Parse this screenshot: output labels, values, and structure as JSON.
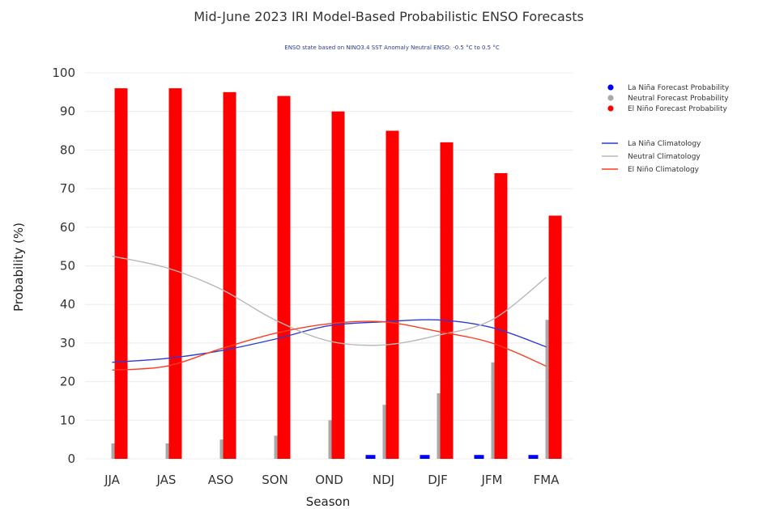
{
  "chart_data": {
    "type": "bar",
    "title": "Mid-June 2023 IRI Model-Based Probabilistic ENSO Forecasts",
    "subtitle": "ENSO state based on NINO3.4 SST Anomaly Neutral ENSO: -0.5 °C to 0.5 °C",
    "xlabel": "Season",
    "ylabel": "Probability (%)",
    "ylim": [
      0,
      100
    ],
    "yticks": [
      "0",
      "10",
      "20",
      "30",
      "40",
      "50",
      "60",
      "70",
      "80",
      "90",
      "100"
    ],
    "categories": [
      "JJA",
      "JAS",
      "ASO",
      "SON",
      "OND",
      "NDJ",
      "DJF",
      "JFM",
      "FMA"
    ],
    "grid": true,
    "legend_position": "right",
    "series": [
      {
        "name": "La Niña Forecast Probability",
        "kind": "bar",
        "color": "#0000ff",
        "values": [
          0,
          0,
          0,
          0,
          0,
          1,
          1,
          1,
          1
        ]
      },
      {
        "name": "Neutral Forecast Probability",
        "kind": "bar",
        "color": "#a9a9a9",
        "values": [
          4,
          4,
          5,
          6,
          10,
          14,
          17,
          25,
          36
        ]
      },
      {
        "name": "El Niño Forecast Probability",
        "kind": "bar",
        "color": "#ff0000",
        "values": [
          96,
          96,
          95,
          94,
          90,
          85,
          82,
          74,
          63
        ]
      },
      {
        "name": "La Niña Climatology",
        "kind": "line",
        "color": "#2b3bd6",
        "values": [
          25,
          26,
          28,
          31,
          34.5,
          35.5,
          36,
          34,
          29
        ]
      },
      {
        "name": "Neutral Climatology",
        "kind": "line",
        "color": "#b8b8b8",
        "values": [
          52.5,
          49.5,
          44,
          36,
          30.5,
          29.5,
          32,
          36,
          47
        ]
      },
      {
        "name": "El Niño Climatology",
        "kind": "line",
        "color": "#ff3b1f",
        "values": [
          23,
          24,
          28.5,
          32.5,
          35,
          35.5,
          33,
          30,
          24
        ]
      }
    ]
  }
}
